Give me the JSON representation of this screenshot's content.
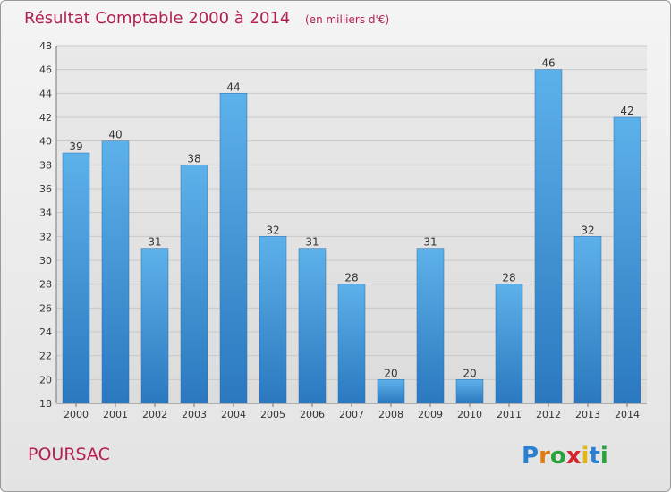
{
  "chart_data": {
    "type": "bar",
    "title": "Résultat Comptable 2000 à 2014",
    "subtitle": "(en milliers d'€)",
    "categories": [
      "2000",
      "2001",
      "2002",
      "2003",
      "2004",
      "2005",
      "2006",
      "2007",
      "2008",
      "2009",
      "2010",
      "2011",
      "2012",
      "2013",
      "2014"
    ],
    "values": [
      39,
      40,
      31,
      38,
      44,
      32,
      31,
      28,
      20,
      31,
      20,
      28,
      46,
      32,
      42
    ],
    "ylim": [
      18,
      48
    ],
    "yticks": [
      18,
      20,
      22,
      24,
      26,
      28,
      30,
      32,
      34,
      36,
      38,
      40,
      42,
      44,
      46,
      48
    ],
    "grid": true,
    "bar_color": "#3a8fd6"
  },
  "commune": "POURSAC",
  "brand": {
    "letters": [
      "P",
      "r",
      "o",
      "x",
      "i",
      "t",
      "i"
    ],
    "colors": [
      "#2a7fd0",
      "#e07b10",
      "#2aa33a",
      "#d6262b",
      "#e3b515",
      "#2a7fd0",
      "#2aa33a"
    ]
  }
}
